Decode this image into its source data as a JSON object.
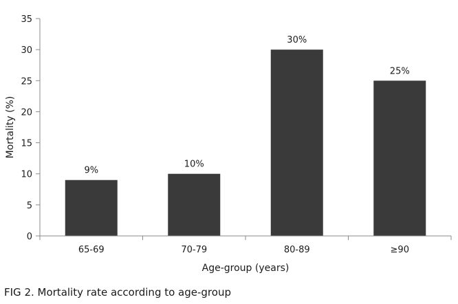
{
  "caption": "FIG 2. Mortality rate according to age-group",
  "chart_data": {
    "type": "bar",
    "title": "",
    "xlabel": "Age-group (years)",
    "ylabel": "Mortality (%)",
    "categories": [
      "65-69",
      "70-79",
      "80-89",
      "≥90"
    ],
    "values": [
      9,
      10,
      30,
      25
    ],
    "data_labels": [
      "9%",
      "10%",
      "30%",
      "25%"
    ],
    "ylim": [
      0,
      35
    ],
    "yticks": [
      0,
      5,
      10,
      15,
      20,
      25,
      30,
      35
    ],
    "grid": false,
    "legend": "none",
    "bar_color": "#3a3a3a"
  }
}
